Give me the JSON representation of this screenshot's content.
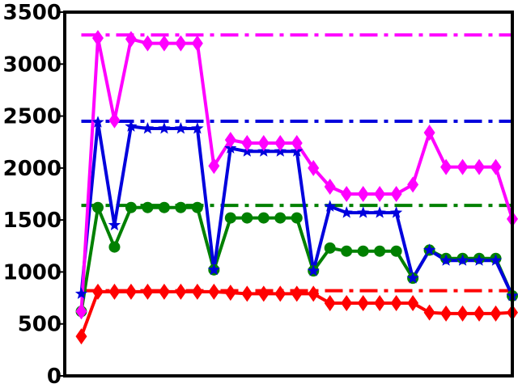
{
  "chart_data": {
    "type": "line",
    "title": "",
    "xlabel": "",
    "ylabel": "",
    "ylim": [
      0,
      3500
    ],
    "xlim": [
      -1,
      26
    ],
    "x_ticks_shown": false,
    "y_ticks": [
      0,
      500,
      1000,
      1500,
      2000,
      2500,
      3000,
      3500
    ],
    "y_tick_labels": [
      "0",
      "500",
      "1000",
      "1500",
      "2000",
      "2500",
      "3000",
      "3500"
    ],
    "x": [
      0,
      1,
      2,
      3,
      4,
      5,
      6,
      7,
      8,
      9,
      10,
      11,
      12,
      13,
      14,
      15,
      16,
      17,
      18,
      19,
      20,
      21,
      22,
      23,
      24,
      25,
      26
    ],
    "series": [
      {
        "name": "magenta",
        "color": "#ff00ff",
        "marker": "diamond",
        "values": [
          620,
          3250,
          2460,
          3240,
          3200,
          3200,
          3200,
          3200,
          2020,
          2270,
          2240,
          2240,
          2240,
          2240,
          2000,
          1820,
          1750,
          1750,
          1750,
          1750,
          1840,
          2340,
          2010,
          2010,
          2010,
          2010,
          1510
        ],
        "reference": 3280
      },
      {
        "name": "blue",
        "color": "#0000dd",
        "marker": "star",
        "values": [
          790,
          2440,
          1450,
          2400,
          2380,
          2380,
          2380,
          2380,
          1020,
          2190,
          2160,
          2160,
          2160,
          2160,
          1010,
          1630,
          1570,
          1570,
          1570,
          1570,
          940,
          1210,
          1110,
          1110,
          1110,
          1110,
          770
        ],
        "reference": 2450
      },
      {
        "name": "green",
        "color": "#008000",
        "marker": "circle",
        "values": [
          620,
          1620,
          1240,
          1620,
          1620,
          1620,
          1620,
          1620,
          1020,
          1520,
          1520,
          1520,
          1520,
          1520,
          1010,
          1230,
          1200,
          1200,
          1200,
          1200,
          940,
          1210,
          1130,
          1130,
          1130,
          1130,
          770
        ],
        "reference": 1640
      },
      {
        "name": "red",
        "color": "#ff0000",
        "marker": "diamond",
        "values": [
          380,
          810,
          810,
          810,
          810,
          810,
          810,
          810,
          810,
          800,
          790,
          790,
          790,
          790,
          790,
          700,
          700,
          700,
          700,
          700,
          700,
          610,
          600,
          600,
          600,
          600,
          610
        ],
        "reference": 820
      }
    ]
  }
}
